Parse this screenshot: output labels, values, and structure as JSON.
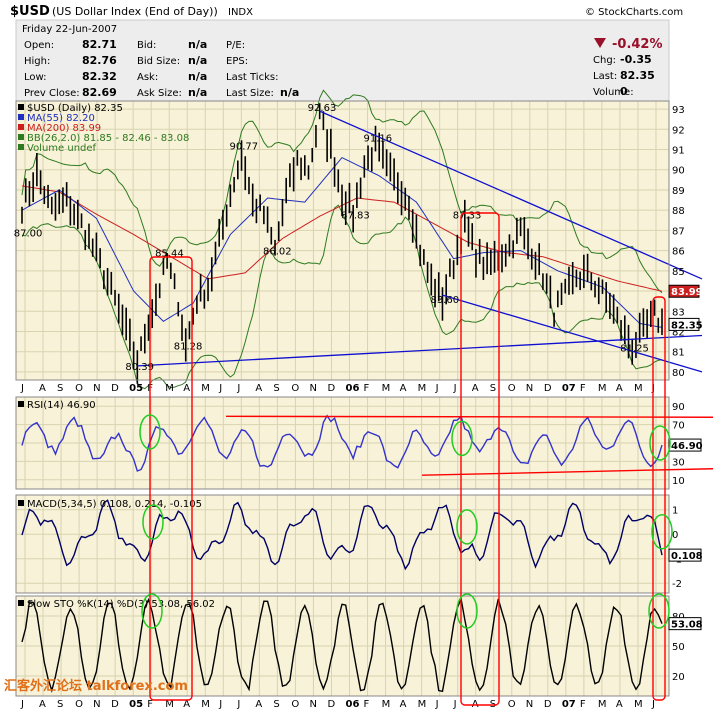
{
  "header": {
    "symbol": "$USD",
    "name": "(US Dollar Index (End of Day))",
    "exchange": "INDX",
    "date": "Friday  22-Jun-2007",
    "site": "© StockCharts.com",
    "change_pct": "-0.42%",
    "fields": [
      {
        "label": "Open:",
        "value": "82.71"
      },
      {
        "label": "High:",
        "value": "82.76"
      },
      {
        "label": "Low:",
        "value": "82.32"
      },
      {
        "label": "Prev Close:",
        "value": "82.69"
      },
      {
        "label": "Bid:",
        "value": "n/a"
      },
      {
        "label": "Bid Size:",
        "value": "n/a"
      },
      {
        "label": "Ask:",
        "value": "n/a"
      },
      {
        "label": "Ask Size:",
        "value": "n/a"
      },
      {
        "label": "P/E:",
        "value": ""
      },
      {
        "label": "EPS:",
        "value": ""
      },
      {
        "label": "Last Ticks:",
        "value": ""
      },
      {
        "label": "Last Size:",
        "value": "n/a"
      },
      {
        "label": "Chg:",
        "value": "-0.35"
      },
      {
        "label": "Last:",
        "value": "82.35"
      },
      {
        "label": "Volume:",
        "value": "0"
      }
    ]
  },
  "watermark": "汇客外汇论坛 talkforex.com",
  "colors": {
    "price": "#000000",
    "ma55": "#1f2fbf",
    "ma200": "#cc1f1f",
    "bb": "#2f7a1f",
    "trendline": "#1010d0",
    "annot": "#ff0000",
    "circle": "#22cc22",
    "rsi": "#3333cc",
    "macd": "#000066",
    "macd_signal": "#000000",
    "hist": "#666633",
    "sto_k": "#000000",
    "sto_d": "#cc0000",
    "down": "#9a0f2a"
  },
  "chart_data": [
    {
      "type": "line",
      "panel": "price",
      "legend": [
        {
          "text": "$USD (Daily) 82.35",
          "color": "#000000"
        },
        {
          "text": "MA(55) 82.20",
          "color": "#1f2fbf"
        },
        {
          "text": "MA(200) 83.99",
          "color": "#cc1f1f"
        },
        {
          "text": "BB(26,2.0) 81.85 - 82.46 - 83.08",
          "color": "#2f7a1f"
        },
        {
          "text": "Volume undef",
          "color": "#2f7a1f"
        }
      ],
      "ylim": [
        79.6,
        93.4
      ],
      "yticks": [
        80,
        81,
        82,
        83,
        84,
        85,
        86,
        87,
        88,
        89,
        90,
        91,
        92,
        93
      ],
      "x_months": [
        "J",
        "A",
        "S",
        "O",
        "N",
        "D",
        "05",
        "F",
        "M",
        "A",
        "M",
        "J",
        "J",
        "A",
        "S",
        "O",
        "N",
        "D",
        "06",
        "F",
        "M",
        "A",
        "M",
        "J",
        "J",
        "A",
        "S",
        "O",
        "N",
        "D",
        "07",
        "F",
        "M",
        "A",
        "M",
        "J"
      ],
      "x_bold": [
        "05",
        "06",
        "07"
      ],
      "price_anchors": [
        [
          0,
          88.2
        ],
        [
          4,
          89.8
        ],
        [
          8,
          88.0
        ],
        [
          12,
          88.5
        ],
        [
          16,
          87.3
        ],
        [
          20,
          85.8
        ],
        [
          24,
          84.0
        ],
        [
          28,
          82.0
        ],
        [
          31,
          80.39
        ],
        [
          34,
          82.5
        ],
        [
          37,
          84.2
        ],
        [
          39,
          85.44
        ],
        [
          42,
          83.5
        ],
        [
          44,
          81.28
        ],
        [
          47,
          83.6
        ],
        [
          50,
          84.2
        ],
        [
          53,
          86.5
        ],
        [
          56,
          88.8
        ],
        [
          59,
          90.77
        ],
        [
          62,
          88.4
        ],
        [
          65,
          87.8
        ],
        [
          68,
          86.02
        ],
        [
          71,
          88.8
        ],
        [
          74,
          90.4
        ],
        [
          77,
          90.0
        ],
        [
          80,
          92.63
        ],
        [
          83,
          91.0
        ],
        [
          86,
          88.8
        ],
        [
          89,
          87.83
        ],
        [
          92,
          90.2
        ],
        [
          95,
          91.16
        ],
        [
          98,
          90.0
        ],
        [
          101,
          89.3
        ],
        [
          104,
          88.5
        ],
        [
          107,
          86.0
        ],
        [
          110,
          84.4
        ],
        [
          113,
          83.6
        ],
        [
          116,
          85.4
        ],
        [
          119,
          87.33
        ],
        [
          122,
          85.8
        ],
        [
          125,
          85.2
        ],
        [
          128,
          85.7
        ],
        [
          131,
          86.2
        ],
        [
          134,
          87.0
        ],
        [
          137,
          86.0
        ],
        [
          140,
          84.8
        ],
        [
          143,
          83.0
        ],
        [
          146,
          83.8
        ],
        [
          149,
          84.7
        ],
        [
          152,
          84.8
        ],
        [
          155,
          84.1
        ],
        [
          158,
          83.4
        ],
        [
          161,
          82.2
        ],
        [
          164,
          81.25
        ],
        [
          167,
          82.0
        ],
        [
          170,
          82.8
        ],
        [
          172,
          82.35
        ]
      ],
      "ma55_anchors": [
        [
          0,
          88.0
        ],
        [
          10,
          89.0
        ],
        [
          20,
          87.6
        ],
        [
          30,
          84.0
        ],
        [
          38,
          82.5
        ],
        [
          46,
          83.4
        ],
        [
          56,
          86.8
        ],
        [
          66,
          88.6
        ],
        [
          76,
          88.4
        ],
        [
          86,
          90.6
        ],
        [
          96,
          89.7
        ],
        [
          106,
          88.4
        ],
        [
          116,
          85.6
        ],
        [
          124,
          85.9
        ],
        [
          134,
          86.0
        ],
        [
          144,
          85.0
        ],
        [
          156,
          84.2
        ],
        [
          166,
          82.4
        ],
        [
          172,
          82.2
        ]
      ],
      "ma200_anchors": [
        [
          0,
          89.2
        ],
        [
          10,
          88.9
        ],
        [
          20,
          87.8
        ],
        [
          30,
          86.8
        ],
        [
          40,
          85.7
        ],
        [
          50,
          84.6
        ],
        [
          60,
          84.9
        ],
        [
          70,
          86.6
        ],
        [
          80,
          87.7
        ],
        [
          90,
          88.6
        ],
        [
          100,
          88.4
        ],
        [
          110,
          87.4
        ],
        [
          120,
          86.4
        ],
        [
          130,
          85.9
        ],
        [
          140,
          85.7
        ],
        [
          150,
          85.1
        ],
        [
          160,
          84.5
        ],
        [
          172,
          83.99
        ]
      ],
      "annotations": [
        "92.63",
        "91.16",
        "90.77",
        "87.83",
        "87.33",
        "87.00",
        "86.02",
        "85.44",
        "83.60",
        "81.28",
        "81.25",
        "80.39"
      ],
      "right_labels": [
        "83.99",
        "82.35"
      ]
    },
    {
      "type": "line",
      "panel": "rsi",
      "legend": [
        {
          "text": "RSI(14) 46.90",
          "color": "#000000"
        }
      ],
      "ylim": [
        0,
        100
      ],
      "yticks": [
        10,
        30,
        50,
        70,
        90
      ],
      "last": "46.90"
    },
    {
      "type": "line",
      "panel": "macd",
      "legend": [
        {
          "text": "MACD(5,34,5) 0.108, 0.214, -0.105",
          "color": "#000000"
        }
      ],
      "ylim": [
        -2.4,
        1.6
      ],
      "yticks": [
        -2,
        -1,
        0,
        1
      ],
      "last": "0.108"
    },
    {
      "type": "line",
      "panel": "sto",
      "legend": [
        {
          "text": "Slow STO %K(14) %D(3) 53.08, 56.02",
          "color": "#000000"
        }
      ],
      "ylim": [
        0,
        100
      ],
      "yticks": [
        20,
        50,
        80
      ],
      "last": "53.08"
    }
  ]
}
